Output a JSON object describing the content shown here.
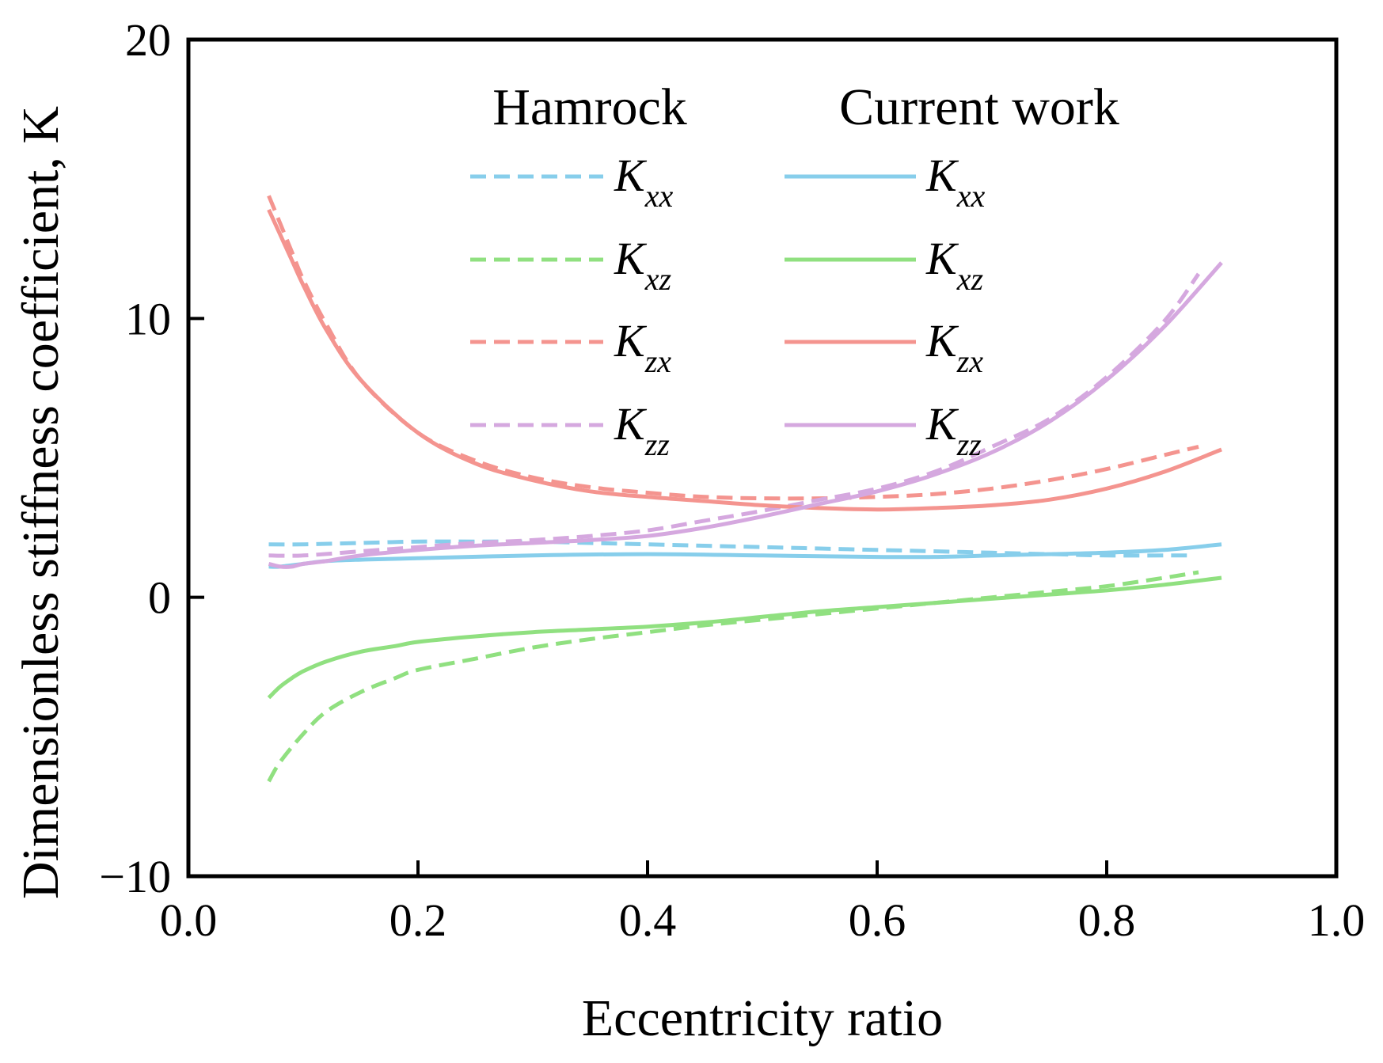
{
  "chart_data": {
    "type": "line",
    "title": "",
    "xlabel": "Eccentricity ratio",
    "ylabel": "Dimensionless stiffness coefficient, K",
    "xlim": [
      0.0,
      1.0
    ],
    "ylim": [
      -10,
      20
    ],
    "xticks": [
      0.0,
      0.2,
      0.4,
      0.6,
      0.8,
      1.0
    ],
    "xtick_labels": [
      "0.0",
      "0.2",
      "0.4",
      "0.6",
      "0.8",
      "1.0"
    ],
    "yticks": [
      -10,
      0,
      10,
      20
    ],
    "ytick_labels": [
      "−10",
      "0",
      "10",
      "20"
    ],
    "grid": false,
    "legend": {
      "placement": "top-right",
      "group_titles": [
        "Hamrock",
        "Current work"
      ],
      "entries": [
        {
          "symbol": "K",
          "subscript": "xx"
        },
        {
          "symbol": "K",
          "subscript": "xz"
        },
        {
          "symbol": "K",
          "subscript": "zx"
        },
        {
          "symbol": "K",
          "subscript": "zz"
        }
      ]
    },
    "series": [
      {
        "name": "Hamrock K_xx",
        "group": "Hamrock",
        "style": "dashed",
        "color": "#87ceeb",
        "x": [
          0.07,
          0.1,
          0.15,
          0.2,
          0.25,
          0.3,
          0.35,
          0.4,
          0.45,
          0.5,
          0.55,
          0.6,
          0.65,
          0.7,
          0.75,
          0.8,
          0.85,
          0.87
        ],
        "y": [
          1.9,
          1.9,
          1.95,
          2.0,
          2.0,
          2.0,
          1.95,
          1.9,
          1.85,
          1.8,
          1.75,
          1.7,
          1.65,
          1.6,
          1.55,
          1.5,
          1.5,
          1.5
        ]
      },
      {
        "name": "Hamrock K_xz",
        "group": "Hamrock",
        "style": "dashed",
        "color": "#90e080",
        "x": [
          0.07,
          0.08,
          0.1,
          0.12,
          0.15,
          0.18,
          0.2,
          0.25,
          0.3,
          0.35,
          0.4,
          0.45,
          0.5,
          0.55,
          0.6,
          0.65,
          0.7,
          0.75,
          0.8,
          0.85,
          0.88
        ],
        "y": [
          -6.6,
          -5.9,
          -4.9,
          -4.1,
          -3.4,
          -2.9,
          -2.6,
          -2.2,
          -1.8,
          -1.5,
          -1.25,
          -1.0,
          -0.8,
          -0.6,
          -0.4,
          -0.2,
          0.0,
          0.2,
          0.4,
          0.7,
          0.9
        ]
      },
      {
        "name": "Hamrock K_zx",
        "group": "Hamrock",
        "style": "dashed",
        "color": "#f4948f",
        "x": [
          0.07,
          0.08,
          0.09,
          0.1,
          0.12,
          0.15,
          0.2,
          0.25,
          0.3,
          0.35,
          0.4,
          0.45,
          0.5,
          0.55,
          0.6,
          0.65,
          0.7,
          0.75,
          0.8,
          0.85,
          0.88
        ],
        "y": [
          14.4,
          13.4,
          12.4,
          11.4,
          9.8,
          7.8,
          5.9,
          4.9,
          4.3,
          3.95,
          3.75,
          3.6,
          3.55,
          3.55,
          3.6,
          3.7,
          3.9,
          4.2,
          4.6,
          5.1,
          5.4
        ]
      },
      {
        "name": "Hamrock K_zz",
        "group": "Hamrock",
        "style": "dashed",
        "color": "#d5a8df",
        "x": [
          0.07,
          0.1,
          0.15,
          0.2,
          0.25,
          0.3,
          0.35,
          0.4,
          0.45,
          0.5,
          0.55,
          0.6,
          0.65,
          0.7,
          0.75,
          0.8,
          0.85,
          0.88
        ],
        "y": [
          1.5,
          1.5,
          1.65,
          1.8,
          1.95,
          2.05,
          2.2,
          2.4,
          2.75,
          3.1,
          3.5,
          3.9,
          4.5,
          5.4,
          6.4,
          7.9,
          9.9,
          11.6
        ]
      },
      {
        "name": "Current work K_xx",
        "group": "Current work",
        "style": "solid",
        "color": "#87ceeb",
        "x": [
          0.07,
          0.08,
          0.1,
          0.12,
          0.15,
          0.2,
          0.3,
          0.4,
          0.5,
          0.6,
          0.65,
          0.7,
          0.75,
          0.8,
          0.85,
          0.9
        ],
        "y": [
          1.1,
          1.1,
          1.2,
          1.3,
          1.35,
          1.4,
          1.5,
          1.55,
          1.5,
          1.45,
          1.45,
          1.5,
          1.55,
          1.6,
          1.7,
          1.9
        ]
      },
      {
        "name": "Current work K_xz",
        "group": "Current work",
        "style": "solid",
        "color": "#90e080",
        "x": [
          0.07,
          0.08,
          0.09,
          0.1,
          0.12,
          0.15,
          0.18,
          0.2,
          0.25,
          0.3,
          0.35,
          0.4,
          0.45,
          0.5,
          0.55,
          0.6,
          0.65,
          0.7,
          0.75,
          0.8,
          0.85,
          0.9
        ],
        "y": [
          -3.6,
          -3.2,
          -2.9,
          -2.65,
          -2.3,
          -1.95,
          -1.75,
          -1.6,
          -1.4,
          -1.25,
          -1.15,
          -1.05,
          -0.9,
          -0.7,
          -0.5,
          -0.35,
          -0.2,
          -0.05,
          0.1,
          0.25,
          0.45,
          0.7
        ]
      },
      {
        "name": "Current work K_zx",
        "group": "Current work",
        "style": "solid",
        "color": "#f4948f",
        "x": [
          0.07,
          0.08,
          0.09,
          0.1,
          0.12,
          0.15,
          0.2,
          0.25,
          0.3,
          0.35,
          0.4,
          0.45,
          0.5,
          0.55,
          0.6,
          0.65,
          0.7,
          0.75,
          0.8,
          0.85,
          0.9
        ],
        "y": [
          13.9,
          13.0,
          12.1,
          11.2,
          9.6,
          7.8,
          5.9,
          4.8,
          4.2,
          3.8,
          3.6,
          3.45,
          3.3,
          3.2,
          3.15,
          3.2,
          3.3,
          3.5,
          3.9,
          4.5,
          5.3
        ]
      },
      {
        "name": "Current work K_zz",
        "group": "Current work",
        "style": "solid",
        "color": "#d5a8df",
        "x": [
          0.07,
          0.08,
          0.09,
          0.1,
          0.12,
          0.15,
          0.2,
          0.25,
          0.3,
          0.35,
          0.4,
          0.45,
          0.5,
          0.55,
          0.6,
          0.65,
          0.7,
          0.75,
          0.8,
          0.85,
          0.9
        ],
        "y": [
          1.2,
          1.1,
          1.1,
          1.2,
          1.3,
          1.5,
          1.7,
          1.85,
          1.95,
          2.05,
          2.2,
          2.5,
          2.9,
          3.35,
          3.8,
          4.4,
          5.2,
          6.3,
          7.8,
          9.7,
          12.0
        ]
      }
    ]
  }
}
